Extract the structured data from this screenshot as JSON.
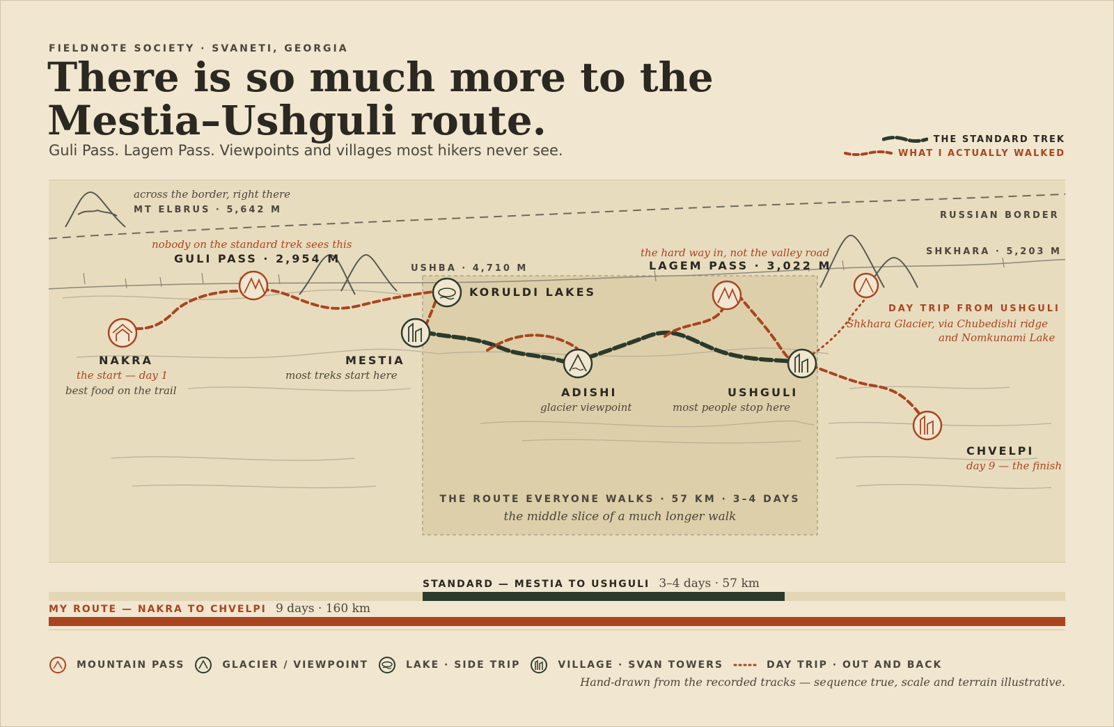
{
  "header": {
    "kicker": "FIELDNOTE SOCIETY · SVANETI, GEORGIA",
    "title_line1": "There is so much more to the",
    "title_line2": "Mestia–Ushguli route.",
    "subtitle": "Guli Pass. Lagem Pass. Viewpoints and villages most hikers never see."
  },
  "legend": {
    "standard": "THE STANDARD TREK",
    "actual": "WHAT I ACTUALLY WALKED"
  },
  "colors": {
    "background": "#f1e6cf",
    "map_panel": "#e8dcbe",
    "highlight_box": "#ddcfa9",
    "standard_trek": "#2c3a2c",
    "my_route": "#a94420",
    "terrain": "#6b6a5e"
  },
  "map": {
    "elbrus": {
      "note": "across the border, right there",
      "label": "MT ELBRUS · 5,642 M"
    },
    "border_label": "RUSSIAN BORDER",
    "shkhara_label": "SHKHARA · 5,203 M",
    "ushba_label": "USHBA · 4,710 M",
    "guli_pass": {
      "note": "nobody on the standard trek sees this",
      "label": "GULI PASS · 2,954 M"
    },
    "lagem_pass": {
      "note": "the hard way in, not the valley road",
      "label": "LAGEM PASS · 3,022 M"
    },
    "koruldi": {
      "label": "KORULDI LAKES"
    },
    "nakra": {
      "label": "NAKRA",
      "note1": "the start — day 1",
      "note2": "best food on the trail"
    },
    "mestia": {
      "label": "MESTIA",
      "note": "most treks start here"
    },
    "adishi": {
      "label": "ADISHI",
      "note": "glacier viewpoint"
    },
    "ushguli": {
      "label": "USHGULI",
      "note": "most people stop here"
    },
    "daytrip": {
      "label": "DAY TRIP FROM USHGULI",
      "note1": "Shkhara Glacier, via Chubedishi ridge",
      "note2": "and Nomkunami Lake"
    },
    "chvelpi": {
      "label": "CHVELPI",
      "note": "day 9 — the finish"
    },
    "box": {
      "label": "THE ROUTE EVERYONE WALKS · 57 KM · 3–4 DAYS",
      "note": "the middle slice of a much longer walk"
    }
  },
  "comparison": {
    "standard_label": "STANDARD — MESTIA TO USHGULI",
    "standard_value": "3–4 days · 57 km",
    "mine_label": "MY ROUTE — NAKRA TO CHVELPI",
    "mine_value": "9 days · 160 km",
    "standard_km": 57,
    "mine_km": 160
  },
  "legend_bottom": {
    "pass": "MOUNTAIN PASS",
    "glacier": "GLACIER / VIEWPOINT",
    "lake": "LAKE · SIDE TRIP",
    "village": "VILLAGE · SVAN TOWERS",
    "daytrip": "DAY TRIP · OUT AND BACK"
  },
  "footnote": "Hand-drawn from the recorded tracks — sequence true, scale and terrain illustrative."
}
